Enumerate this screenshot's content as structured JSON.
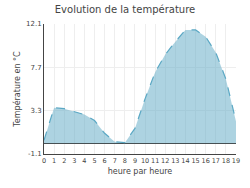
{
  "chart_data": {
    "type": "area",
    "title": "Evolution de la température",
    "x_label": "heure par heure",
    "y_label": "Température en °C",
    "x": [
      0,
      1,
      2,
      3,
      4,
      5,
      6,
      7,
      8,
      9,
      10,
      11,
      12,
      13,
      14,
      15,
      16,
      17,
      18,
      19
    ],
    "values": [
      0.3,
      3.6,
      3.5,
      3.2,
      2.9,
      2.3,
      1.0,
      0.15,
      0.05,
      1.5,
      4.5,
      7.2,
      9.0,
      10.3,
      11.5,
      11.5,
      10.8,
      9.2,
      6.5,
      2.2
    ],
    "color": "#5ba8c4",
    "line_style": "dashed",
    "xlim": [
      0,
      19
    ],
    "xticks": [
      0,
      1,
      2,
      3,
      4,
      5,
      6,
      7,
      8,
      9,
      10,
      11,
      12,
      13,
      14,
      15,
      16,
      17,
      18,
      19
    ],
    "ylim": [
      -1.1,
      12.1
    ],
    "yticks": [
      -1.1,
      3.3,
      7.7,
      12.1
    ],
    "grid": true
  }
}
